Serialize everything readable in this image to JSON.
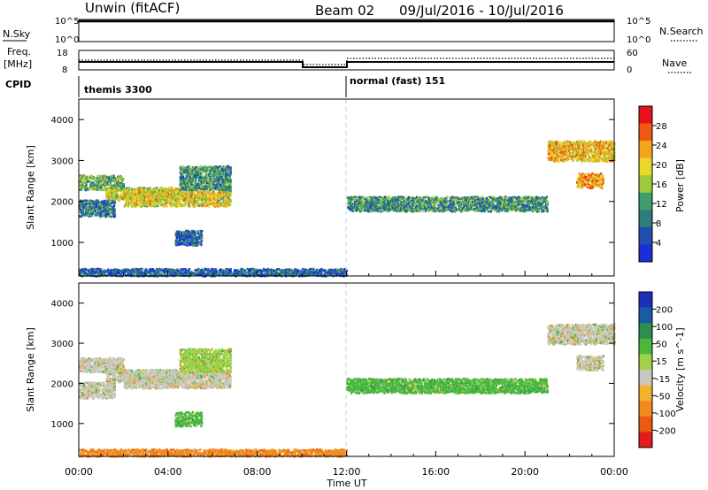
{
  "header": {
    "station": "Unwin (fitACF)",
    "beam": "Beam 02",
    "date_range": "09/Jul/2016 - 10/Jul/2016"
  },
  "panels": {
    "nsky": {
      "label": "N.Sky",
      "ticks_left": [
        "10^5",
        "10^0"
      ],
      "ticks_right": [
        "10^5",
        "10^0"
      ],
      "right_label": "N.Search"
    },
    "freq": {
      "label_line1": "Freq.",
      "label_line2": "[MHz]",
      "ticks_left": [
        "18",
        "8"
      ],
      "ticks_right": [
        "60",
        "0"
      ],
      "right_label": "Nave"
    },
    "cpid": {
      "label": "CPID",
      "programs": [
        {
          "name": "themis 3300",
          "start_hour": 0
        },
        {
          "name": "normal (fast) 151",
          "start_hour": 12
        }
      ]
    }
  },
  "colorbars": {
    "power": {
      "label": "Power [dB]",
      "ticks": [
        "28",
        "24",
        "20",
        "16",
        "12",
        "8",
        "4"
      ],
      "colors": [
        "#e8131a",
        "#ef5a12",
        "#f5a51c",
        "#e9d82a",
        "#9bcb3c",
        "#3f9e6a",
        "#2d7d7a",
        "#1f4fb0",
        "#1a2fd9"
      ]
    },
    "velocity": {
      "label": "Velocity [m s^-1]",
      "ticks": [
        "200",
        "100",
        "50",
        "15",
        "-15",
        "-50",
        "-100",
        "-200"
      ],
      "colors": [
        "#1d2fb8",
        "#1b5aa6",
        "#2e8e4d",
        "#49b83c",
        "#9fd247",
        "#c8c8c0",
        "#f0b42a",
        "#f08a1e",
        "#ea5a14",
        "#e21b1b"
      ]
    }
  },
  "chart_data": [
    {
      "type": "heatmap",
      "name": "power",
      "ylabel": "Slant Range [km]",
      "yticks": [
        1000,
        2000,
        3000,
        4000
      ],
      "ylim": [
        180,
        4500
      ],
      "xlim_hours": [
        0,
        24
      ],
      "echo_bands": [
        {
          "t0": 0.0,
          "t1": 2.0,
          "range_lo": 2300,
          "range_hi": 2650,
          "power": 14
        },
        {
          "t0": 0.0,
          "t1": 1.6,
          "range_lo": 1650,
          "range_hi": 2050,
          "power": 10
        },
        {
          "t0": 1.2,
          "t1": 4.5,
          "range_lo": 2050,
          "range_hi": 2350,
          "power": 18
        },
        {
          "t0": 2.0,
          "t1": 6.8,
          "range_lo": 1900,
          "range_hi": 2300,
          "power": 20
        },
        {
          "t0": 4.5,
          "t1": 6.8,
          "range_lo": 2300,
          "range_hi": 2900,
          "power": 12
        },
        {
          "t0": 4.3,
          "t1": 5.5,
          "range_lo": 950,
          "range_hi": 1300,
          "power": 8
        },
        {
          "t0": 0.0,
          "t1": 12.0,
          "range_lo": 200,
          "range_hi": 400,
          "power": 8
        },
        {
          "t0": 12.0,
          "t1": 21.0,
          "range_lo": 1780,
          "range_hi": 2150,
          "power": 12
        },
        {
          "t0": 21.0,
          "t1": 24.0,
          "range_lo": 3000,
          "range_hi": 3500,
          "power": 22
        },
        {
          "t0": 22.3,
          "t1": 23.5,
          "range_lo": 2350,
          "range_hi": 2700,
          "power": 24
        }
      ]
    },
    {
      "type": "heatmap",
      "name": "velocity",
      "ylabel": "Slant Range [km]",
      "yticks": [
        1000,
        2000,
        3000,
        4000
      ],
      "ylim": [
        180,
        4500
      ],
      "xlim_hours": [
        0,
        24
      ],
      "xlabel": "Time UT",
      "xticks": [
        "00:00",
        "04:00",
        "08:00",
        "12:00",
        "16:00",
        "20:00",
        "00:00"
      ],
      "echo_bands": [
        {
          "t0": 0.0,
          "t1": 2.0,
          "range_lo": 2300,
          "range_hi": 2650,
          "velocity": 0
        },
        {
          "t0": 0.0,
          "t1": 1.6,
          "range_lo": 1650,
          "range_hi": 2050,
          "velocity": 0
        },
        {
          "t0": 1.2,
          "t1": 4.5,
          "range_lo": 2050,
          "range_hi": 2350,
          "velocity": 0
        },
        {
          "t0": 2.0,
          "t1": 6.8,
          "range_lo": 1900,
          "range_hi": 2300,
          "velocity": 0
        },
        {
          "t0": 4.5,
          "t1": 6.8,
          "range_lo": 2300,
          "range_hi": 2900,
          "velocity": 5
        },
        {
          "t0": 4.3,
          "t1": 5.5,
          "range_lo": 950,
          "range_hi": 1300,
          "velocity": 30
        },
        {
          "t0": 0.0,
          "t1": 12.0,
          "range_lo": 200,
          "range_hi": 400,
          "velocity": -40
        },
        {
          "t0": 12.0,
          "t1": 21.0,
          "range_lo": 1780,
          "range_hi": 2150,
          "velocity": 30
        },
        {
          "t0": 21.0,
          "t1": 24.0,
          "range_lo": 3000,
          "range_hi": 3500,
          "velocity": 0
        },
        {
          "t0": 22.3,
          "t1": 23.5,
          "range_lo": 2350,
          "range_hi": 2700,
          "velocity": 0
        }
      ]
    }
  ]
}
